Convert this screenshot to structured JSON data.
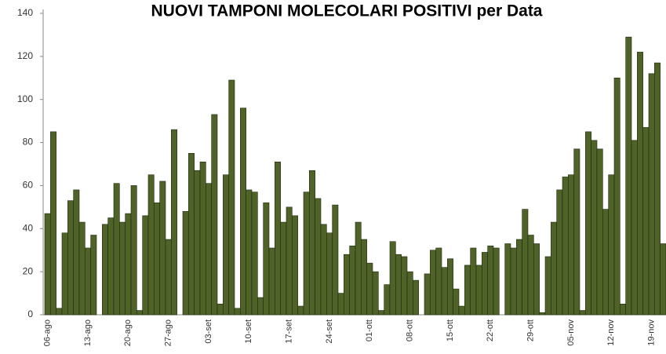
{
  "chart_data": {
    "type": "bar",
    "title": "NUOVI TAMPONI MOLECOLARI POSITIVI per Data",
    "categories": [
      "06-ago",
      null,
      null,
      null,
      null,
      null,
      null,
      "13-ago",
      null,
      null,
      null,
      null,
      null,
      null,
      "20-ago",
      null,
      null,
      null,
      null,
      null,
      null,
      "27-ago",
      null,
      null,
      null,
      null,
      null,
      null,
      "03-set",
      null,
      null,
      null,
      null,
      null,
      null,
      "10-set",
      null,
      null,
      null,
      null,
      null,
      null,
      "17-set",
      null,
      null,
      null,
      null,
      null,
      null,
      "24-set",
      null,
      null,
      null,
      null,
      null,
      null,
      "01-ott",
      null,
      null,
      null,
      null,
      null,
      null,
      "08-ott",
      null,
      null,
      null,
      null,
      null,
      null,
      "15-ott",
      null,
      null,
      null,
      null,
      null,
      null,
      "22-ott",
      null,
      null,
      null,
      null,
      null,
      null,
      "29-ott",
      null,
      null,
      null,
      null,
      null,
      null,
      "05-nov",
      null,
      null,
      null,
      null,
      null,
      null,
      "12-nov",
      null,
      null,
      null,
      null,
      null,
      null,
      "19-nov",
      null,
      null
    ],
    "values": [
      47,
      85,
      3,
      38,
      53,
      58,
      43,
      31,
      37,
      0,
      42,
      45,
      61,
      43,
      47,
      60,
      2,
      46,
      65,
      52,
      62,
      35,
      86,
      0,
      48,
      75,
      67,
      71,
      61,
      93,
      5,
      65,
      109,
      3,
      96,
      58,
      57,
      8,
      52,
      31,
      71,
      43,
      50,
      46,
      4,
      57,
      67,
      54,
      42,
      38,
      51,
      10,
      28,
      32,
      43,
      35,
      24,
      20,
      2,
      14,
      34,
      28,
      27,
      20,
      16,
      0,
      19,
      30,
      31,
      22,
      26,
      12,
      4,
      23,
      31,
      23,
      29,
      32,
      31,
      0,
      33,
      31,
      35,
      49,
      37,
      33,
      1,
      27,
      43,
      58,
      64,
      65,
      77,
      2,
      85,
      81,
      77,
      49,
      65,
      110,
      5,
      129,
      81,
      122,
      87,
      112,
      117,
      33
    ],
    "color": "#4f6228",
    "ylim": [
      0,
      140
    ],
    "yticks": [
      0,
      20,
      40,
      60,
      80,
      100,
      120,
      140
    ]
  }
}
